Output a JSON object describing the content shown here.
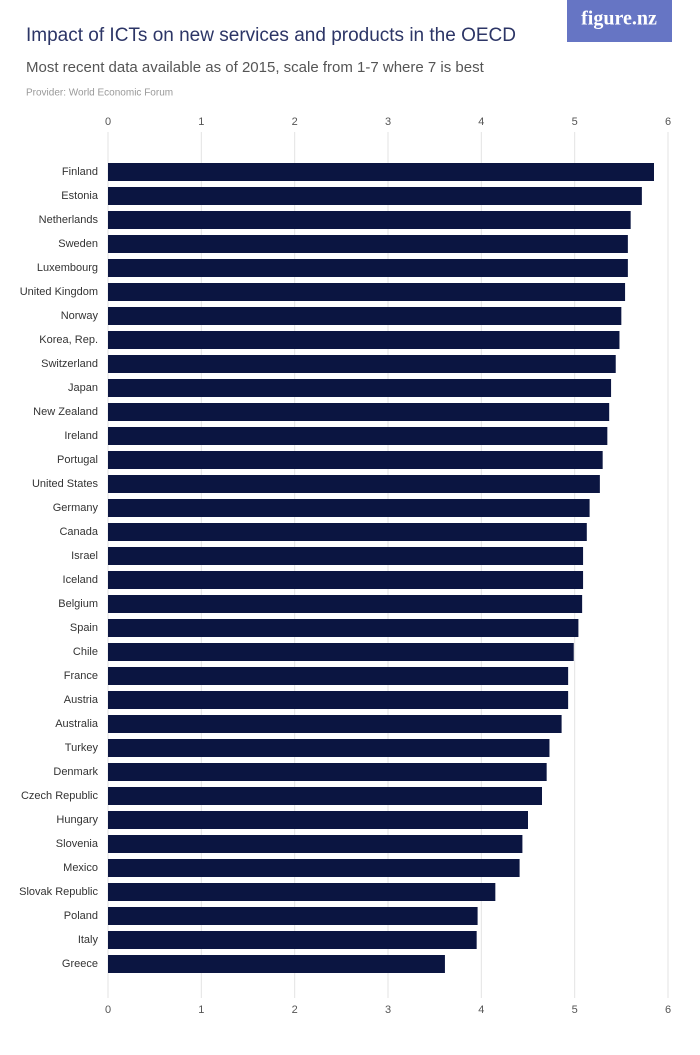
{
  "chart_data": {
    "type": "bar",
    "orientation": "horizontal",
    "title": "Impact of ICTs on new services and products in the OECD",
    "subtitle": "Most recent data available as of 2015, scale from 1-7 where 7 is best",
    "provider": "Provider: World Economic Forum",
    "logo": "figure.nz",
    "categories": [
      "Finland",
      "Estonia",
      "Netherlands",
      "Sweden",
      "Luxembourg",
      "United Kingdom",
      "Norway",
      "Korea, Rep.",
      "Switzerland",
      "Japan",
      "New Zealand",
      "Ireland",
      "Portugal",
      "United States",
      "Germany",
      "Canada",
      "Israel",
      "Iceland",
      "Belgium",
      "Spain",
      "Chile",
      "France",
      "Austria",
      "Australia",
      "Turkey",
      "Denmark",
      "Czech Republic",
      "Hungary",
      "Slovenia",
      "Mexico",
      "Slovak Republic",
      "Poland",
      "Italy",
      "Greece"
    ],
    "values": [
      5.85,
      5.72,
      5.6,
      5.57,
      5.57,
      5.54,
      5.5,
      5.48,
      5.44,
      5.39,
      5.37,
      5.35,
      5.3,
      5.27,
      5.16,
      5.13,
      5.09,
      5.09,
      5.08,
      5.04,
      4.99,
      4.93,
      4.93,
      4.86,
      4.73,
      4.7,
      4.65,
      4.5,
      4.44,
      4.41,
      4.15,
      3.96,
      3.95,
      3.61
    ],
    "color": "#0b1541",
    "xlim": [
      0,
      6
    ],
    "xticks": [
      0,
      1,
      2,
      3,
      4,
      5,
      6
    ],
    "grid": true
  }
}
